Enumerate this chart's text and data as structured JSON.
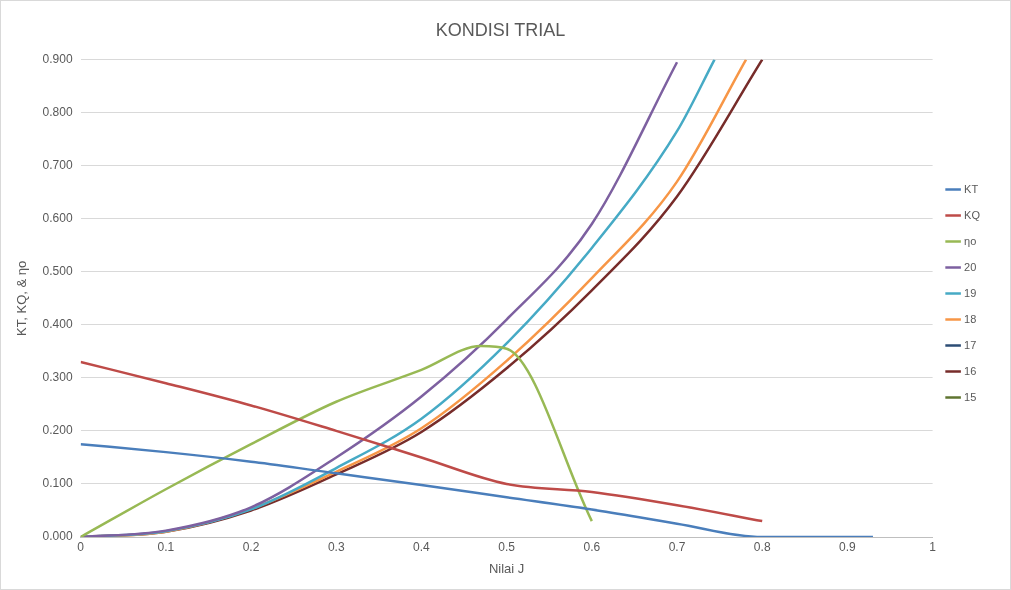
{
  "chart_data": {
    "type": "line",
    "title": "KONDISI TRIAL",
    "xlabel": "Nilai J",
    "ylabel": "KT, KQ, & ηo",
    "xlim": [
      0,
      1
    ],
    "xticks": [
      0,
      0.1,
      0.2,
      0.3,
      0.4,
      0.5,
      0.6,
      0.7,
      0.8,
      0.9,
      1
    ],
    "ylim": [
      0,
      0.9
    ],
    "yticks": [
      {
        "value": 0,
        "label": "0.000"
      },
      {
        "value": 0.1,
        "label": "0.100"
      },
      {
        "value": 0.2,
        "label": "0.200"
      },
      {
        "value": 0.3,
        "label": "0.300"
      },
      {
        "value": 0.4,
        "label": "0.400"
      },
      {
        "value": 0.5,
        "label": "0.500"
      },
      {
        "value": 0.6,
        "label": "0.600"
      },
      {
        "value": 0.7,
        "label": "0.700"
      },
      {
        "value": 0.8,
        "label": "0.800"
      },
      {
        "value": 0.9,
        "label": "0.900"
      }
    ],
    "grid": "y",
    "legend": "right",
    "marker": "none",
    "line_style": "solid",
    "series": [
      {
        "name": "KT",
        "color": "#4a7ebb",
        "x": [
          0,
          0.1,
          0.2,
          0.3,
          0.4,
          0.5,
          0.6,
          0.7,
          0.8,
          0.93
        ],
        "values": [
          0.175,
          0.16,
          0.142,
          0.12,
          0.098,
          0.075,
          0.052,
          0.025,
          0,
          0
        ]
      },
      {
        "name": "KQ",
        "color": "#be4b48",
        "x": [
          0,
          0.1,
          0.2,
          0.3,
          0.4,
          0.5,
          0.6,
          0.7,
          0.8
        ],
        "values": [
          0.33,
          0.29,
          0.248,
          0.2,
          0.15,
          0.1,
          0.085,
          0.06,
          0.03
        ]
      },
      {
        "name": "ηo",
        "color": "#98b954",
        "x": [
          0,
          0.1,
          0.2,
          0.3,
          0.4,
          0.47,
          0.5,
          0.6
        ],
        "values": [
          0,
          0.09,
          0.175,
          0.255,
          0.315,
          0.36,
          0.355,
          0.03
        ]
      },
      {
        "name": "20",
        "color": "#7d60a0",
        "x": [
          0,
          0.1,
          0.2,
          0.3,
          0.4,
          0.5,
          0.6,
          0.7
        ],
        "values": [
          0,
          0.012,
          0.056,
          0.15,
          0.265,
          0.41,
          0.59,
          0.895
        ]
      },
      {
        "name": "19",
        "color": "#46aac5",
        "x": [
          0,
          0.1,
          0.2,
          0.3,
          0.4,
          0.5,
          0.6,
          0.7,
          0.744
        ],
        "values": [
          0,
          0.011,
          0.052,
          0.13,
          0.223,
          0.365,
          0.545,
          0.765,
          0.9
        ]
      },
      {
        "name": "18",
        "color": "#f79646",
        "x": [
          0,
          0.1,
          0.2,
          0.3,
          0.4,
          0.5,
          0.6,
          0.7,
          0.781
        ],
        "values": [
          0,
          0.01,
          0.053,
          0.123,
          0.205,
          0.332,
          0.488,
          0.67,
          0.9
        ]
      },
      {
        "name": "17",
        "color": "#2c4d75"
      },
      {
        "name": "16",
        "color": "#772c2a",
        "x": [
          0,
          0.1,
          0.2,
          0.3,
          0.4,
          0.5,
          0.6,
          0.7,
          0.8
        ],
        "values": [
          0,
          0.01,
          0.05,
          0.118,
          0.198,
          0.318,
          0.465,
          0.642,
          0.9
        ]
      },
      {
        "name": "15",
        "color": "#5f7530"
      }
    ]
  }
}
